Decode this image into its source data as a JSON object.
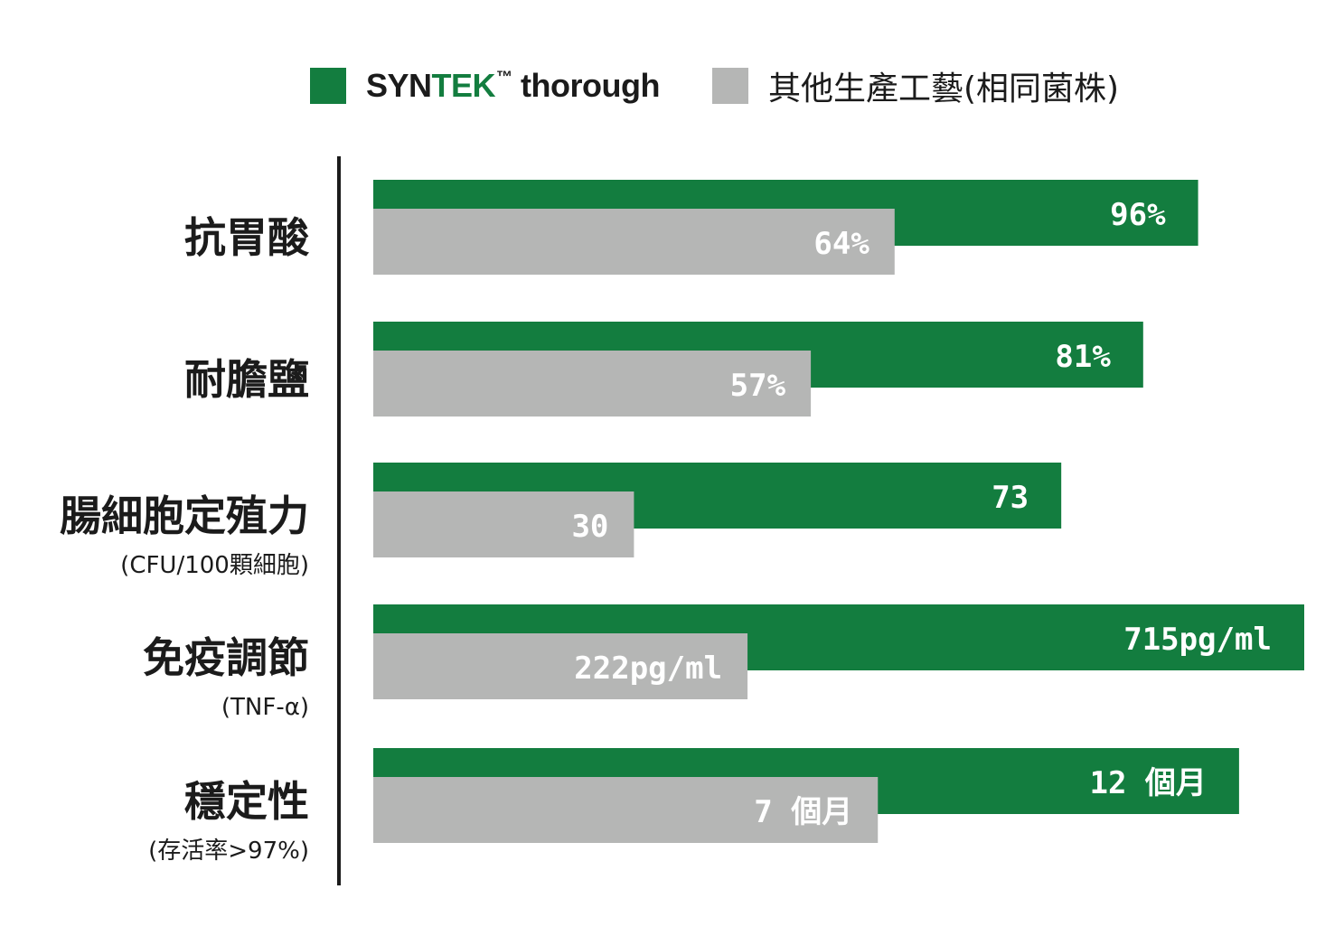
{
  "legend": {
    "series1_brand_prefix": "SYN",
    "series1_brand_accent": "TEK",
    "series1_tm": "™",
    "series1_suffix": " thorough",
    "series2_label": "其他生產工藝(相同菌株)"
  },
  "colors": {
    "green": "#137d3f",
    "gray": "#b5b6b5",
    "axis": "#1b1b1b",
    "text": "#1b1b1b"
  },
  "chart_data": {
    "type": "bar",
    "orientation": "horizontal",
    "grid": false,
    "legend_position": "top",
    "categories": [
      {
        "label": "抗胃酸",
        "sublabel": ""
      },
      {
        "label": "耐膽鹽",
        "sublabel": ""
      },
      {
        "label": "腸細胞定殖力",
        "sublabel": "(CFU/100顆細胞)"
      },
      {
        "label": "免疫調節",
        "sublabel": "(TNF-α)"
      },
      {
        "label": "穩定性",
        "sublabel": "(存活率>97%)"
      }
    ],
    "series": [
      {
        "name": "SYNTEK™ thorough",
        "color": "#137d3f",
        "values": [
          96,
          81,
          73,
          715,
          12
        ],
        "labels": [
          "96%",
          "81%",
          "73",
          "715pg/ml",
          "12 個月"
        ],
        "relative_length": [
          0.886,
          0.827,
          0.739,
          1.0,
          0.93
        ]
      },
      {
        "name": "其他生產工藝(相同菌株)",
        "color": "#b5b6b5",
        "values": [
          64,
          57,
          30,
          222,
          7
        ],
        "labels": [
          "64%",
          "57%",
          "30",
          "222pg/ml",
          "7 個月"
        ],
        "relative_length": [
          0.56,
          0.47,
          0.28,
          0.402,
          0.542
        ]
      }
    ]
  }
}
